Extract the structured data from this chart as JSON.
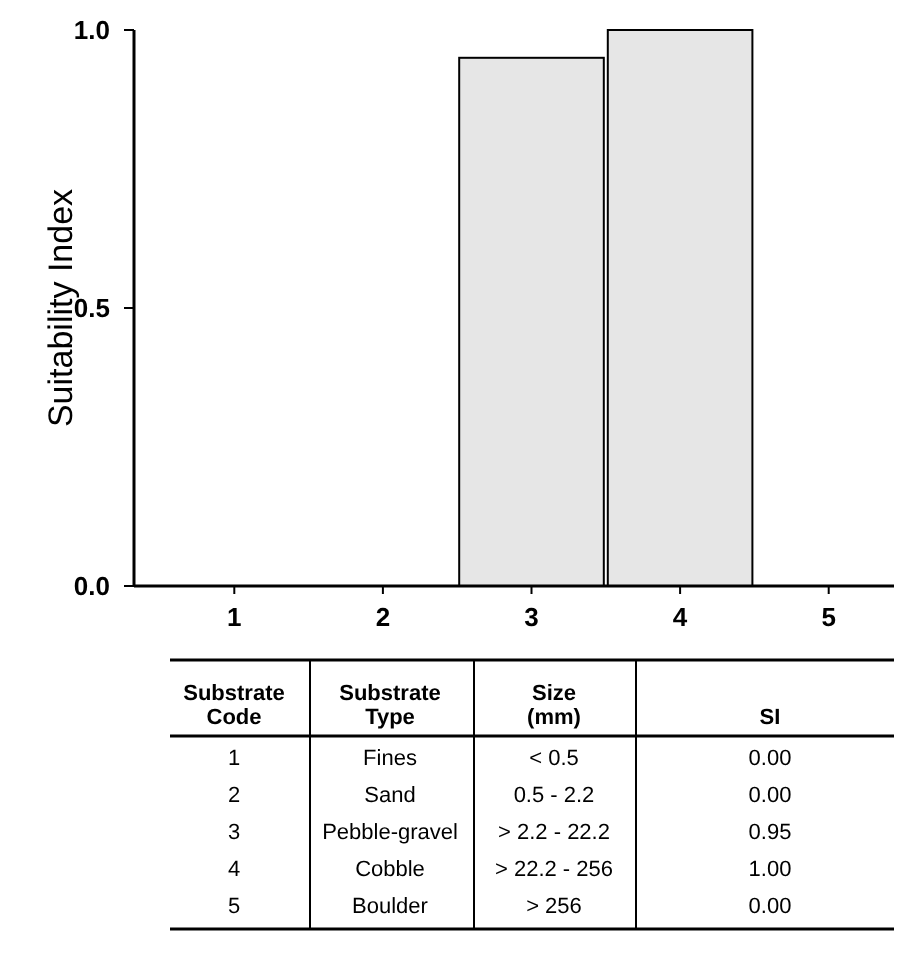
{
  "chart_data": {
    "type": "bar",
    "ylabel": "Suitability Index",
    "categories": [
      "1",
      "2",
      "3",
      "4",
      "5"
    ],
    "values": [
      0,
      0,
      0.95,
      1.0,
      0
    ],
    "color": "#e6e6e6",
    "ylim": [
      0,
      1
    ],
    "yticks": [
      {
        "value": 0,
        "label": "0.0"
      },
      {
        "value": 0.5,
        "label": "0.5"
      },
      {
        "value": 1,
        "label": "1.0"
      }
    ],
    "annotations": [
      "Substrate Code",
      "Substrate Type",
      "Size (mm)",
      "SI",
      "Fines",
      "< 0.5",
      "0.00",
      "Sand",
      "0.5 - 2.2",
      "0.00",
      "Pebble-gravel",
      "> 2.2 - 22.2",
      "0.95",
      "Cobble",
      "> 22.2 - 256",
      "1.00",
      "Boulder",
      "> 256",
      "0.00"
    ]
  }
}
